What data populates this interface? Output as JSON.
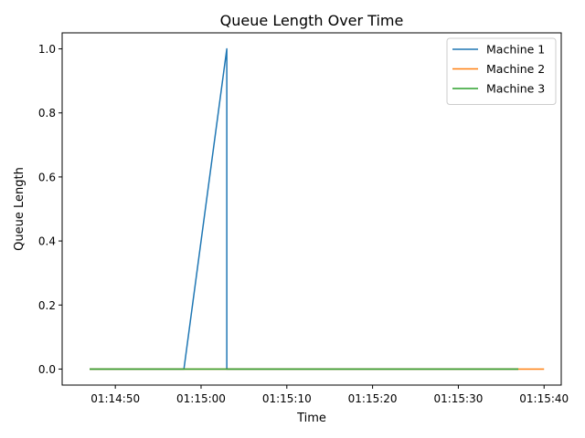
{
  "chart_data": {
    "type": "line",
    "title": "Queue Length Over Time",
    "xlabel": "Time",
    "ylabel": "Queue Length",
    "x_ticks": [
      "01:14:50",
      "01:15:00",
      "01:15:10",
      "01:15:20",
      "01:15:30",
      "01:15:40"
    ],
    "y_ticks": [
      "0.0",
      "0.2",
      "0.4",
      "0.6",
      "0.8",
      "1.0"
    ],
    "xlim": [
      "01:14:43.8",
      "01:15:42.0"
    ],
    "ylim": [
      -0.05,
      1.05
    ],
    "grid": false,
    "legend_position": "top-right",
    "series": [
      {
        "name": "Machine 1",
        "color": "#1f77b4",
        "points": [
          [
            "01:14:47",
            0
          ],
          [
            "01:14:58",
            0
          ],
          [
            "01:15:03",
            1
          ],
          [
            "01:15:03",
            0
          ],
          [
            "01:15:37",
            0
          ]
        ]
      },
      {
        "name": "Machine 2",
        "color": "#ff7f0e",
        "points": [
          [
            "01:14:47",
            0
          ],
          [
            "01:15:40",
            0
          ]
        ]
      },
      {
        "name": "Machine 3",
        "color": "#2ca02c",
        "points": [
          [
            "01:14:47",
            0
          ],
          [
            "01:15:37",
            0
          ]
        ]
      }
    ]
  }
}
